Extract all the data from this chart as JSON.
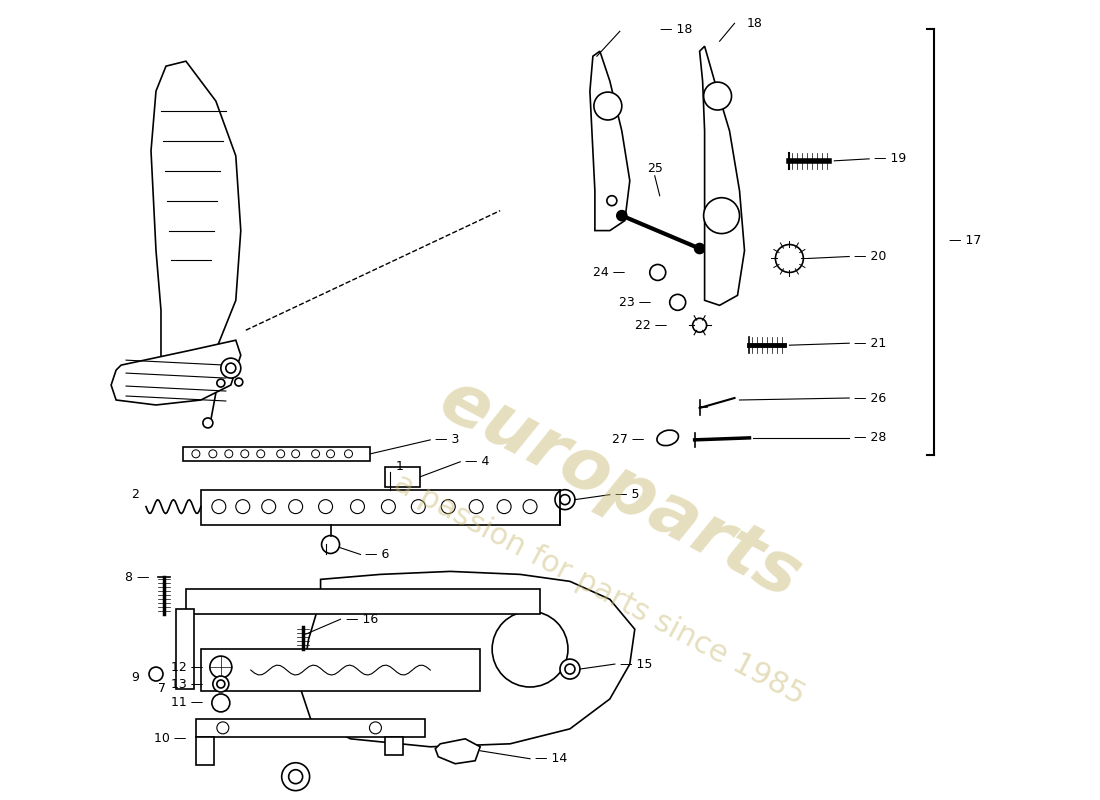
{
  "bg": "#ffffff",
  "lc": "#000000",
  "wm1": "europarts",
  "wm2": "a passion for parts since 1985",
  "wm_color": "#c8b870",
  "wm_alpha": 0.45
}
